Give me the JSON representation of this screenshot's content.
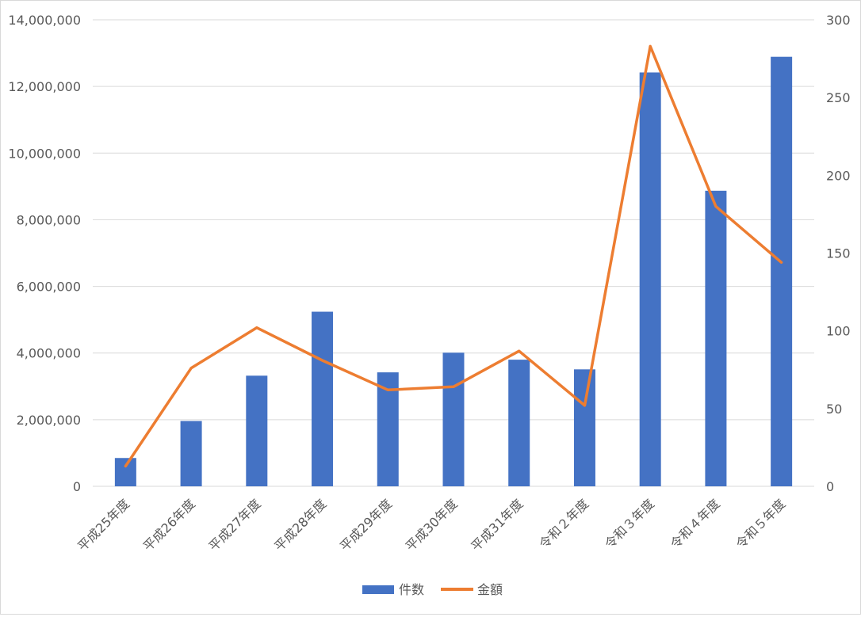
{
  "chart_data": {
    "type": "bar",
    "categories": [
      "平成25年度",
      "平成26年度",
      "平成27年度",
      "平成28年度",
      "平成29年度",
      "平成30年度",
      "平成31年度",
      "令和２年度",
      "令和３年度",
      "令和４年度",
      "令和５年度"
    ],
    "series": [
      {
        "name": "件数",
        "type": "bar",
        "axis": "left",
        "color": "#4472C4",
        "values": [
          850000,
          1960000,
          3320000,
          5240000,
          3420000,
          4010000,
          3800000,
          3510000,
          12420000,
          8870000,
          12890000
        ]
      },
      {
        "name": "金額",
        "type": "line",
        "axis": "right",
        "color": "#ED7D31",
        "values": [
          13,
          76,
          102,
          81,
          62,
          64,
          87,
          52,
          283,
          180,
          144
        ]
      }
    ],
    "y_left": {
      "lim": [
        0,
        14000000
      ],
      "ticks": [
        0,
        2000000,
        4000000,
        6000000,
        8000000,
        10000000,
        12000000,
        14000000
      ],
      "tick_labels": [
        "0",
        "2,000,000",
        "4,000,000",
        "6,000,000",
        "8,000,000",
        "10,000,000",
        "12,000,000",
        "14,000,000"
      ]
    },
    "y_right": {
      "lim": [
        0,
        300
      ],
      "ticks": [
        0,
        50,
        100,
        150,
        200,
        250,
        300
      ],
      "tick_labels": [
        "0",
        "50",
        "100",
        "150",
        "200",
        "250",
        "300"
      ]
    },
    "grid": true,
    "legend": {
      "position": "bottom",
      "entries": [
        "件数",
        "金額"
      ]
    }
  }
}
